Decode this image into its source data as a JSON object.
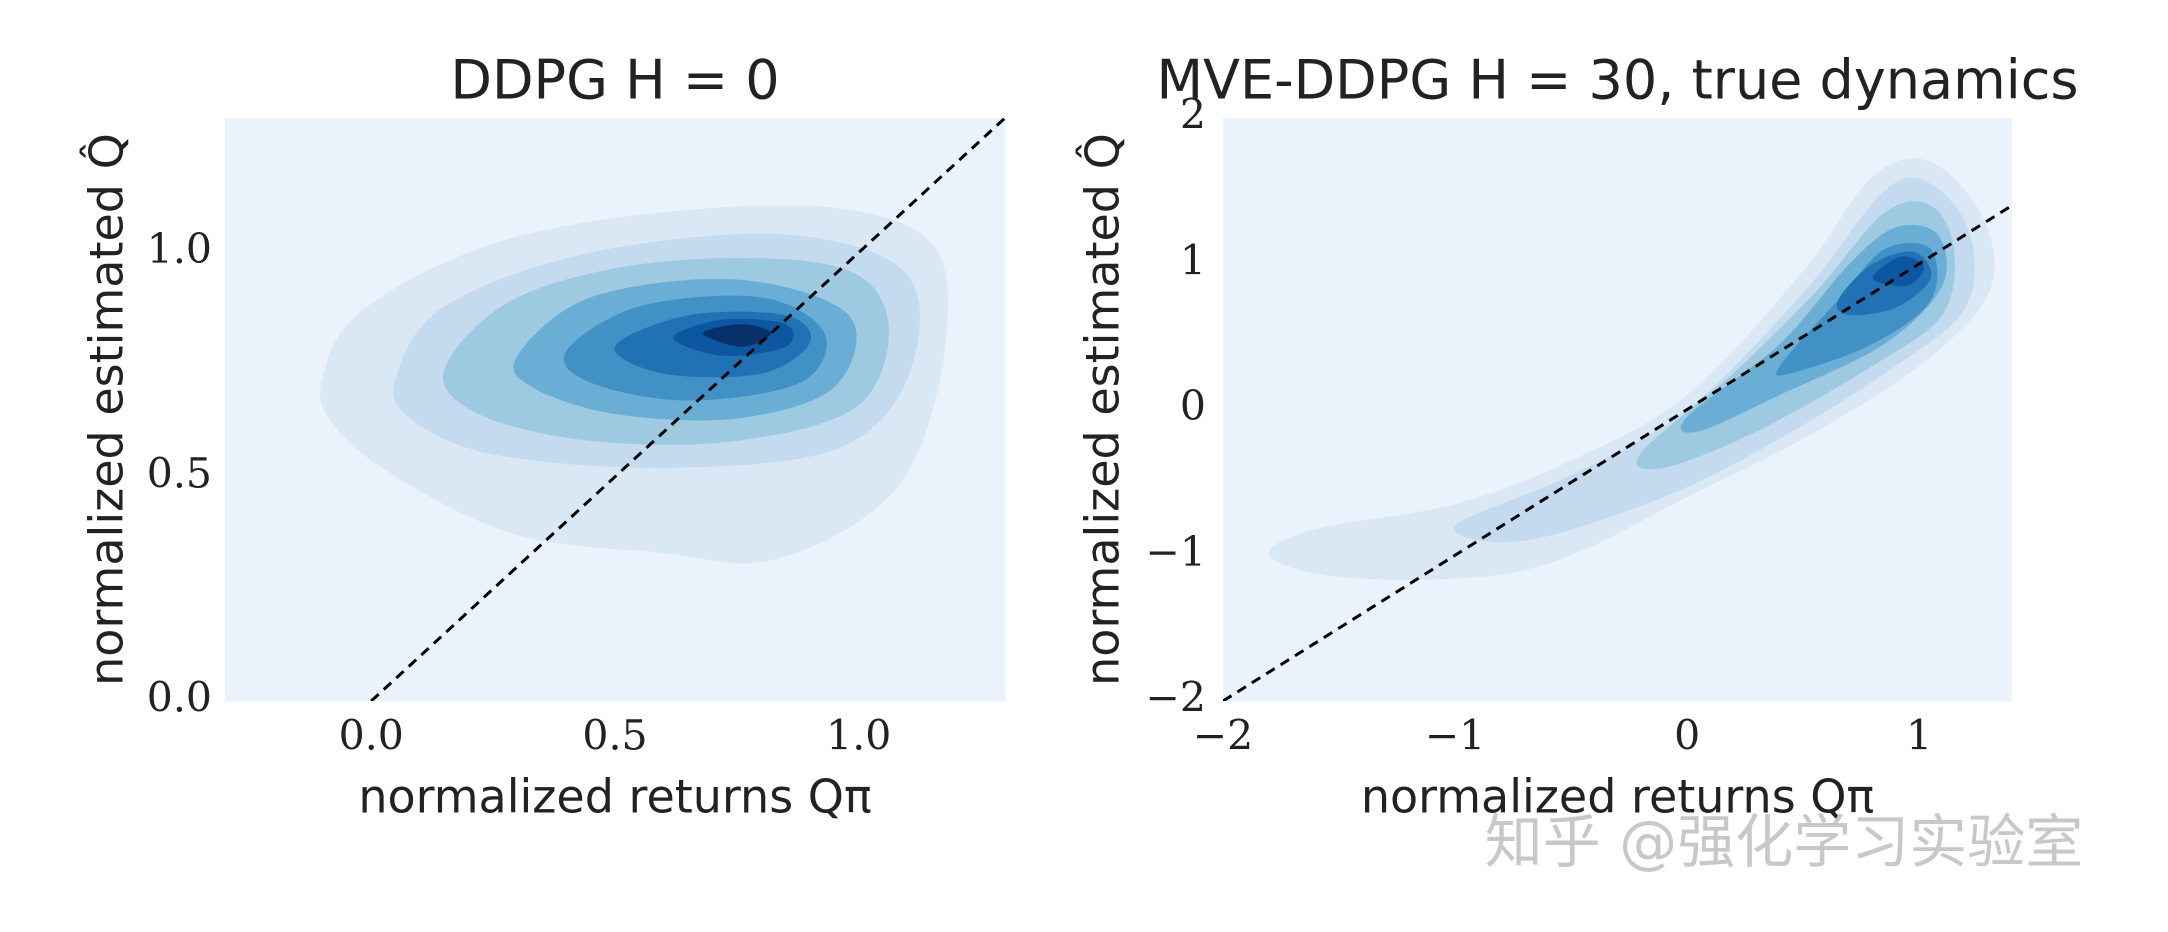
{
  "chart_data": [
    {
      "type": "contour",
      "title": "DDPG H = 0",
      "xlabel": "normalized returns Qπ",
      "ylabel": "normalized estimated Q̂",
      "background": "#eaf2fb",
      "xlim": [
        -0.3,
        1.3
      ],
      "ylim": [
        0,
        1.3
      ],
      "xticks": [
        {
          "value": 0,
          "label": "0.0"
        },
        0.5,
        {
          "value": 1,
          "label": "1.0"
        }
      ],
      "yticks": [
        {
          "value": 0,
          "label": "0.0"
        },
        0.5,
        {
          "value": 1,
          "label": "1.0"
        }
      ],
      "contours": [
        {
          "color": "#dae8f5",
          "x": [
            -0.1,
            -0.02,
            0.25,
            0.6,
            0.95,
            1.15,
            1.18,
            1.12,
            1.0,
            0.8,
            0.6,
            0.3,
            0.05,
            -0.08
          ],
          "y": [
            0.72,
            0.87,
            1.02,
            1.09,
            1.1,
            1.02,
            0.82,
            0.55,
            0.4,
            0.31,
            0.33,
            0.37,
            0.5,
            0.62
          ]
        },
        {
          "color": "#c4daee",
          "x": [
            0.05,
            0.15,
            0.45,
            0.85,
            1.1,
            1.1,
            0.95,
            0.6,
            0.25,
            0.08
          ],
          "y": [
            0.72,
            0.88,
            1.0,
            1.04,
            0.95,
            0.72,
            0.56,
            0.52,
            0.55,
            0.63
          ]
        },
        {
          "color": "#9ecae1",
          "x": [
            0.15,
            0.3,
            0.6,
            0.95,
            1.06,
            1.0,
            0.75,
            0.45,
            0.22
          ],
          "y": [
            0.74,
            0.9,
            0.98,
            0.97,
            0.85,
            0.66,
            0.58,
            0.58,
            0.64
          ]
        },
        {
          "color": "#6aaed6",
          "x": [
            0.3,
            0.45,
            0.75,
            0.98,
            0.95,
            0.75,
            0.5,
            0.33
          ],
          "y": [
            0.77,
            0.9,
            0.94,
            0.86,
            0.7,
            0.63,
            0.64,
            0.7
          ]
        },
        {
          "color": "#4191c6",
          "x": [
            0.4,
            0.55,
            0.8,
            0.93,
            0.88,
            0.65,
            0.45
          ],
          "y": [
            0.78,
            0.88,
            0.9,
            0.82,
            0.71,
            0.67,
            0.71
          ]
        },
        {
          "color": "#2171b5",
          "x": [
            0.5,
            0.65,
            0.85,
            0.9,
            0.8,
            0.6
          ],
          "y": [
            0.79,
            0.86,
            0.86,
            0.8,
            0.73,
            0.73
          ]
        },
        {
          "color": "#0d56a1",
          "x": [
            0.62,
            0.72,
            0.85,
            0.85,
            0.72
          ],
          "y": [
            0.81,
            0.85,
            0.84,
            0.79,
            0.77
          ]
        },
        {
          "color": "#08306b",
          "x": [
            0.68,
            0.76,
            0.82,
            0.76
          ],
          "y": [
            0.82,
            0.84,
            0.82,
            0.79
          ]
        }
      ],
      "lines": [
        {
          "color": "#000000",
          "dashed": true,
          "x": [
            0,
            1.3
          ],
          "y": [
            0,
            1.3
          ]
        }
      ]
    },
    {
      "type": "contour",
      "title": "MVE-DDPG H = 30, true dynamics",
      "xlabel": "normalized returns Qπ",
      "ylabel": "normalized estimated Q̂",
      "background": "#eaf2fb",
      "xlim": [
        -2,
        1.4
      ],
      "ylim": [
        -2,
        2
      ],
      "xticks": [
        {
          "value": -2,
          "label": "−2"
        },
        {
          "value": -1,
          "label": "−1"
        },
        0,
        1
      ],
      "yticks": [
        {
          "value": -2,
          "label": "−2"
        },
        {
          "value": -1,
          "label": "−1"
        },
        0,
        1,
        2
      ],
      "contours": [
        {
          "color": "#dae8f5",
          "x": [
            -1.8,
            -1.6,
            -1.0,
            -0.5,
            0.0,
            0.5,
            0.8,
            1.05,
            1.28,
            1.3,
            1.0,
            0.5,
            0.0,
            -0.5,
            -0.9,
            -1.5
          ],
          "y": [
            -1.0,
            -0.82,
            -0.65,
            -0.35,
            0.1,
            0.95,
            1.6,
            1.7,
            1.3,
            0.8,
            0.3,
            -0.2,
            -0.6,
            -1.0,
            -1.15,
            -1.15
          ]
        },
        {
          "color": "#c4daee",
          "x": [
            -1.0,
            -0.5,
            0.0,
            0.5,
            0.85,
            1.05,
            1.22,
            1.2,
            0.9,
            0.4,
            -0.1,
            -0.7
          ],
          "y": [
            -0.8,
            -0.45,
            0.0,
            0.8,
            1.5,
            1.55,
            1.2,
            0.7,
            0.3,
            -0.2,
            -0.6,
            -0.9
          ]
        },
        {
          "color": "#9ecae1",
          "x": [
            -0.2,
            0.2,
            0.55,
            0.85,
            1.05,
            1.15,
            1.1,
            0.8,
            0.3,
            -0.1
          ],
          "y": [
            -0.3,
            0.25,
            0.8,
            1.35,
            1.4,
            1.1,
            0.65,
            0.3,
            -0.15,
            -0.4
          ]
        },
        {
          "color": "#6aaed6",
          "x": [
            0.0,
            0.4,
            0.7,
            0.9,
            1.08,
            1.1,
            0.85,
            0.4,
            0.05
          ],
          "y": [
            -0.05,
            0.45,
            1.0,
            1.25,
            1.2,
            0.85,
            0.45,
            0.1,
            -0.15
          ]
        },
        {
          "color": "#4191c6",
          "x": [
            0.4,
            0.65,
            0.85,
            1.05,
            1.05,
            0.8,
            0.45
          ],
          "y": [
            0.3,
            0.75,
            1.1,
            1.1,
            0.75,
            0.45,
            0.25
          ]
        },
        {
          "color": "#2171b5",
          "x": [
            0.65,
            0.8,
            0.98,
            1.05,
            0.9,
            0.7
          ],
          "y": [
            0.75,
            1.0,
            1.08,
            0.9,
            0.7,
            0.65
          ]
        },
        {
          "color": "#0d56a1",
          "x": [
            0.8,
            0.92,
            1.02,
            0.95
          ],
          "y": [
            0.9,
            1.05,
            0.98,
            0.85
          ]
        }
      ],
      "lines": [
        {
          "color": "#000000",
          "dashed": true,
          "x": [
            -2,
            1.4
          ],
          "y": [
            -2,
            1.4
          ]
        }
      ]
    }
  ],
  "watermark": "知乎 @强化学习实验室"
}
